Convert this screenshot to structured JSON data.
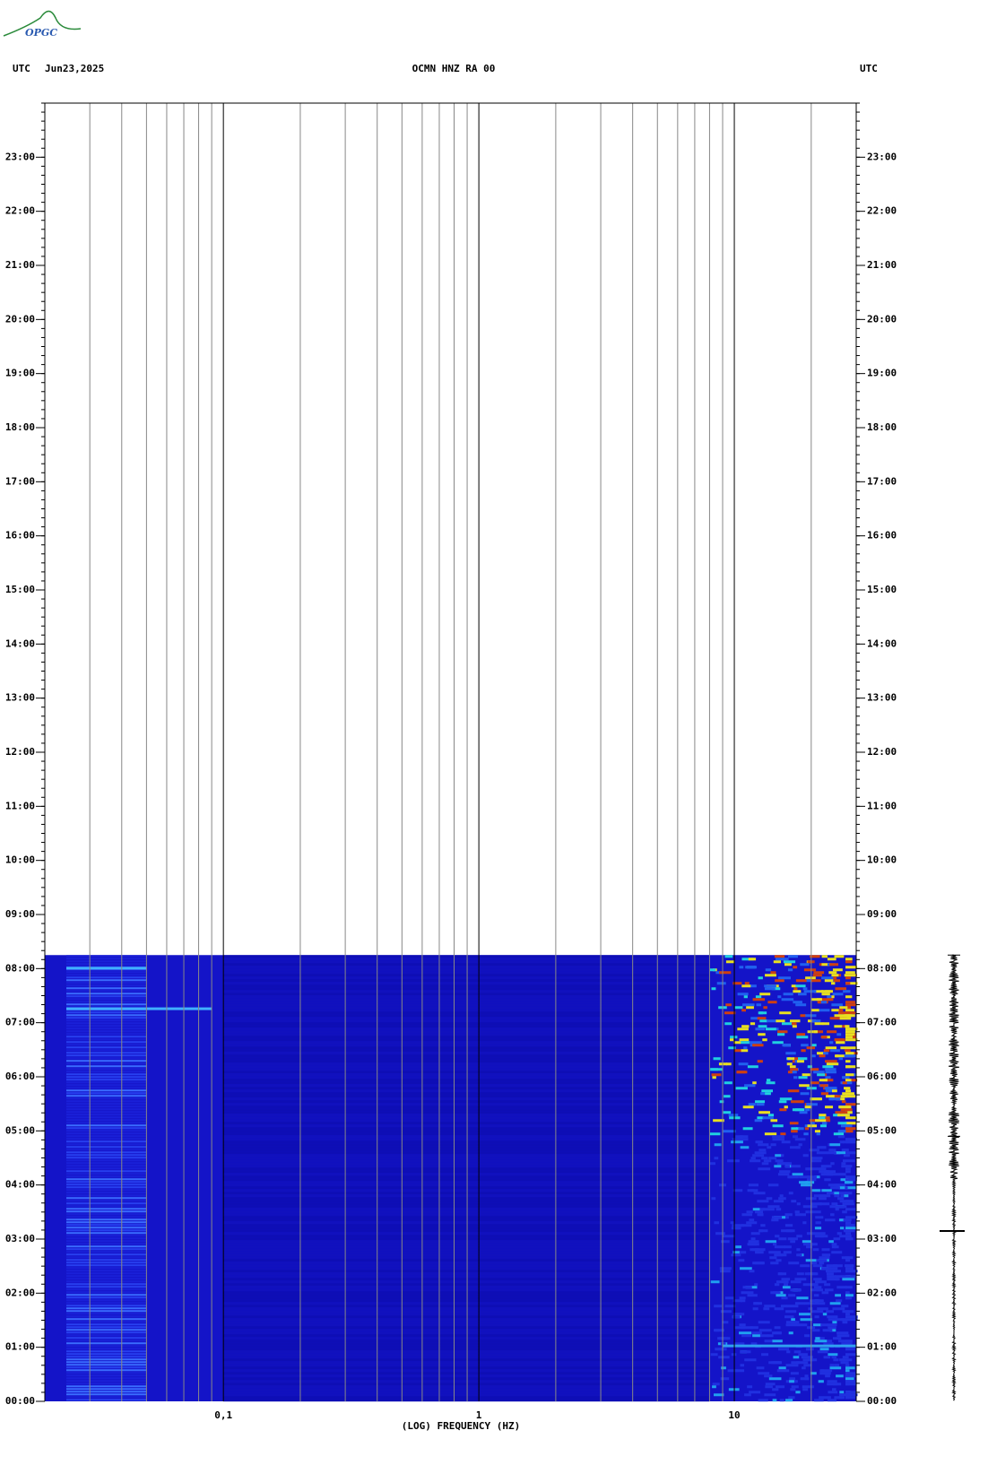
{
  "logo": "OPGC",
  "chart_data": {
    "type": "spectrogram",
    "header_left": "UTC",
    "date": "Jun23,2025",
    "title": "OCMN HNZ RA 00",
    "header_right": "UTC",
    "xlabel": "(LOG) FREQUENCY (HZ)",
    "xscale": "log",
    "xlim": [
      0.02,
      30
    ],
    "xticks": [
      {
        "value": 0.1,
        "label": "0,1"
      },
      1,
      10
    ],
    "ylim": [
      0,
      24
    ],
    "yticks": [
      {
        "value": 0,
        "label": "00:00"
      },
      {
        "value": 1,
        "label": "01:00"
      },
      {
        "value": 2,
        "label": "02:00"
      },
      {
        "value": 3,
        "label": "03:00"
      },
      {
        "value": 4,
        "label": "04:00"
      },
      {
        "value": 5,
        "label": "05:00"
      },
      {
        "value": 6,
        "label": "06:00"
      },
      {
        "value": 7,
        "label": "07:00"
      },
      {
        "value": 8,
        "label": "08:00"
      },
      {
        "value": 9,
        "label": "09:00"
      },
      {
        "value": 10,
        "label": "10:00"
      },
      {
        "value": 11,
        "label": "11:00"
      },
      {
        "value": 12,
        "label": "12:00"
      },
      {
        "value": 13,
        "label": "13:00"
      },
      {
        "value": 14,
        "label": "14:00"
      },
      {
        "value": 15,
        "label": "15:00"
      },
      {
        "value": 16,
        "label": "16:00"
      },
      {
        "value": 17,
        "label": "17:00"
      },
      {
        "value": 18,
        "label": "18:00"
      },
      {
        "value": 19,
        "label": "19:00"
      },
      {
        "value": 20,
        "label": "20:00"
      },
      {
        "value": 21,
        "label": "21:00"
      },
      {
        "value": 22,
        "label": "22:00"
      },
      {
        "value": 23,
        "label": "23:00"
      }
    ],
    "data_end": 8.25,
    "color": "#1414c8",
    "grid": true
  }
}
